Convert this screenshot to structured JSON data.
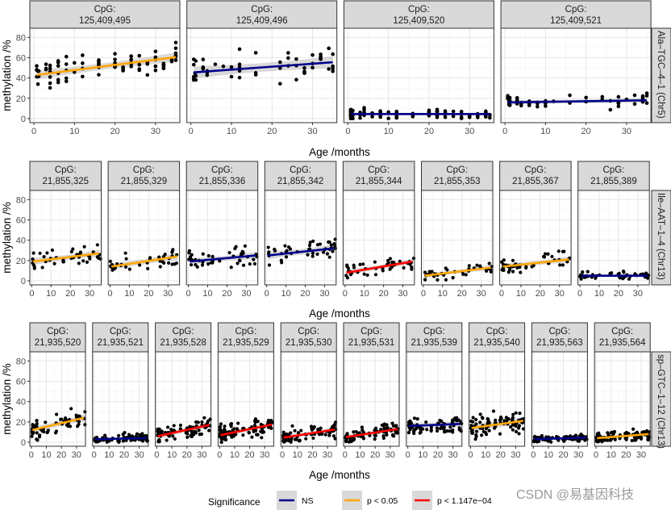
{
  "chart_data": {
    "type": "scatter",
    "title": "",
    "xlabel": "Age /months",
    "ylabel": "methylation /%",
    "xlim": [
      0,
      35
    ],
    "ylim": [
      0,
      85
    ],
    "x_ticks": [
      0,
      10,
      20,
      30
    ],
    "y_ticks": [
      0,
      20,
      40,
      60,
      80
    ],
    "grid": true,
    "strip_prefix": "CpG:",
    "legend": {
      "title": "Significance",
      "placement": "bottom",
      "entries": [
        {
          "label": "NS",
          "color": "#00008b"
        },
        {
          "label": "p < 0.05",
          "color": "#ffa500"
        },
        {
          "label": "p < 1.147e−04",
          "color": "#ff0000"
        }
      ]
    },
    "rows": [
      {
        "label": "Ala–TGC–4–1 (Chr5)",
        "panels": [
          {
            "cpg": "125,409,495",
            "significance": "p < 0.05",
            "fit": [
              43,
              60.5
            ],
            "spread": 9,
            "n": 90
          },
          {
            "cpg": "125,409,496",
            "significance": "NS",
            "fit": [
              45.5,
              55.5
            ],
            "spread": 12,
            "n": 55
          },
          {
            "cpg": "125,409,520",
            "significance": "NS",
            "fit": [
              4.5,
              4.5
            ],
            "spread": 3,
            "n": 110
          },
          {
            "cpg": "125,409,521",
            "significance": "NS",
            "fit": [
              16,
              18
            ],
            "spread": 5,
            "n": 60
          }
        ]
      },
      {
        "label": "Ile–AAT–1–4 (Chr13)",
        "panels": [
          {
            "cpg": "21,855,325",
            "significance": "p < 0.05",
            "fit": [
              19,
              27
            ],
            "spread": 7,
            "n": 45
          },
          {
            "cpg": "21,855,329",
            "significance": "p < 0.05",
            "fit": [
              14,
              24
            ],
            "spread": 7,
            "n": 40
          },
          {
            "cpg": "21,855,336",
            "significance": "NS",
            "fit": [
              19,
              25
            ],
            "spread": 7,
            "n": 45
          },
          {
            "cpg": "21,855,342",
            "significance": "NS",
            "fit": [
              25,
              32
            ],
            "spread": 8,
            "n": 45
          },
          {
            "cpg": "21,855,344",
            "significance": "p < 1.147e−04",
            "fit": [
              8,
              19
            ],
            "spread": 6,
            "n": 45
          },
          {
            "cpg": "21,855,353",
            "significance": "p < 0.05",
            "fit": [
              5,
              13
            ],
            "spread": 5,
            "n": 40
          },
          {
            "cpg": "21,855,367",
            "significance": "p < 0.05",
            "fit": [
              14,
              21
            ],
            "spread": 6,
            "n": 45
          },
          {
            "cpg": "21,855,389",
            "significance": "NS",
            "fit": [
              5,
              5
            ],
            "spread": 3,
            "n": 45
          }
        ]
      },
      {
        "label": "sp–GTC–1–12 (Chr13)",
        "panels": [
          {
            "cpg": "21,935,520",
            "significance": "p < 0.05",
            "fit": [
              12,
              24
            ],
            "spread": 7,
            "n": 60
          },
          {
            "cpg": "21,935,521",
            "significance": "NS",
            "fit": [
              3,
              4
            ],
            "spread": 3,
            "n": 90
          },
          {
            "cpg": "21,935,528",
            "significance": "p < 1.147e−04",
            "fit": [
              6,
              17
            ],
            "spread": 6,
            "n": 80
          },
          {
            "cpg": "21,935,529",
            "significance": "p < 1.147e−04",
            "fit": [
              7,
              17.5
            ],
            "spread": 6,
            "n": 100
          },
          {
            "cpg": "21,935,530",
            "significance": "p < 1.147e−04",
            "fit": [
              4.5,
              12.5
            ],
            "spread": 5,
            "n": 80
          },
          {
            "cpg": "21,935,531",
            "significance": "p < 1.147e−04",
            "fit": [
              5,
              13
            ],
            "spread": 5,
            "n": 80
          },
          {
            "cpg": "21,935,539",
            "significance": "NS",
            "fit": [
              16,
              18
            ],
            "spread": 6,
            "n": 70
          },
          {
            "cpg": "21,935,540",
            "significance": "p < 0.05",
            "fit": [
              14,
              21
            ],
            "spread": 8,
            "n": 90
          },
          {
            "cpg": "21,935,563",
            "significance": "NS",
            "fit": [
              3,
              4.5
            ],
            "spread": 2.5,
            "n": 90
          },
          {
            "cpg": "21,935,564",
            "significance": "p < 0.05",
            "fit": [
              4,
              8
            ],
            "spread": 4,
            "n": 90
          }
        ]
      }
    ]
  },
  "watermark": "CSDN @易基因科技"
}
